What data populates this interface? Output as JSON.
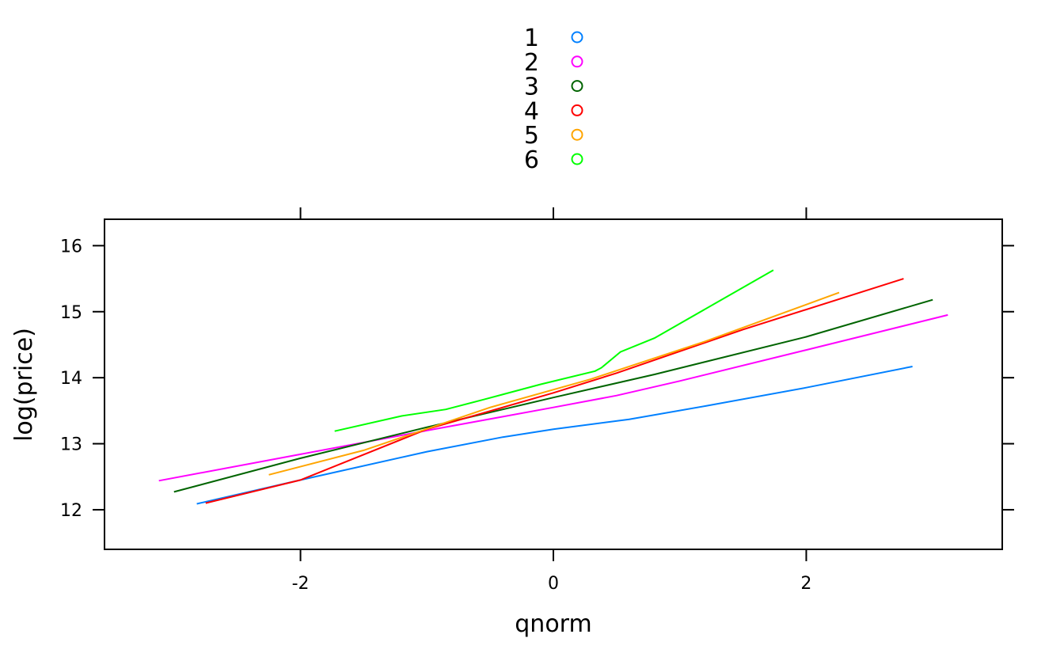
{
  "chart_data": {
    "type": "line",
    "title": "",
    "xlabel": "qnorm",
    "ylabel": "log(price)",
    "xlim": [
      -3.55,
      3.55
    ],
    "ylim": [
      11.4,
      16.4
    ],
    "xticks": [
      {
        "value": -2,
        "label": "-2"
      },
      {
        "value": 0,
        "label": "0"
      },
      {
        "value": 2,
        "label": "2"
      }
    ],
    "yticks": [
      {
        "value": 12,
        "label": "12"
      },
      {
        "value": 13,
        "label": "13"
      },
      {
        "value": 14,
        "label": "14"
      },
      {
        "value": 15,
        "label": "15"
      },
      {
        "value": 16,
        "label": "16"
      }
    ],
    "grid": false,
    "legend_position": "top-center",
    "series": [
      {
        "name": "1",
        "color": "#0080ff",
        "points": [
          [
            -2.82,
            12.09
          ],
          [
            -2.0,
            12.45
          ],
          [
            -1.0,
            12.88
          ],
          [
            -0.4,
            13.1
          ],
          [
            0.0,
            13.22
          ],
          [
            0.6,
            13.37
          ],
          [
            1.2,
            13.57
          ],
          [
            2.0,
            13.85
          ],
          [
            2.84,
            14.17
          ]
        ]
      },
      {
        "name": "2",
        "color": "#ff00ff",
        "points": [
          [
            -3.12,
            12.44
          ],
          [
            -2.0,
            12.84
          ],
          [
            -1.0,
            13.2
          ],
          [
            -0.4,
            13.41
          ],
          [
            0.0,
            13.55
          ],
          [
            0.5,
            13.73
          ],
          [
            1.0,
            13.95
          ],
          [
            2.0,
            14.42
          ],
          [
            3.12,
            14.95
          ]
        ]
      },
      {
        "name": "3",
        "color": "#006400",
        "points": [
          [
            -3.0,
            12.27
          ],
          [
            -2.0,
            12.78
          ],
          [
            -1.0,
            13.25
          ],
          [
            0.0,
            13.7
          ],
          [
            0.8,
            14.05
          ],
          [
            2.0,
            14.62
          ],
          [
            3.0,
            15.18
          ]
        ]
      },
      {
        "name": "4",
        "color": "#ff0000",
        "points": [
          [
            -2.75,
            12.1
          ],
          [
            -2.0,
            12.45
          ],
          [
            -1.0,
            13.22
          ],
          [
            0.0,
            13.77
          ],
          [
            0.5,
            14.07
          ],
          [
            1.5,
            14.73
          ],
          [
            2.77,
            15.5
          ]
        ]
      },
      {
        "name": "5",
        "color": "#ffa500",
        "points": [
          [
            -2.25,
            12.53
          ],
          [
            -1.5,
            12.9
          ],
          [
            -0.5,
            13.55
          ],
          [
            0.3,
            13.98
          ],
          [
            1.2,
            14.55
          ],
          [
            2.26,
            15.29
          ]
        ]
      },
      {
        "name": "6",
        "color": "#00ff00",
        "points": [
          [
            -1.73,
            13.19
          ],
          [
            -1.2,
            13.42
          ],
          [
            -0.85,
            13.52
          ],
          [
            -0.55,
            13.67
          ],
          [
            -0.1,
            13.9
          ],
          [
            0.33,
            14.1
          ],
          [
            0.38,
            14.15
          ],
          [
            0.53,
            14.39
          ],
          [
            0.8,
            14.6
          ],
          [
            1.74,
            15.63
          ]
        ]
      }
    ]
  }
}
